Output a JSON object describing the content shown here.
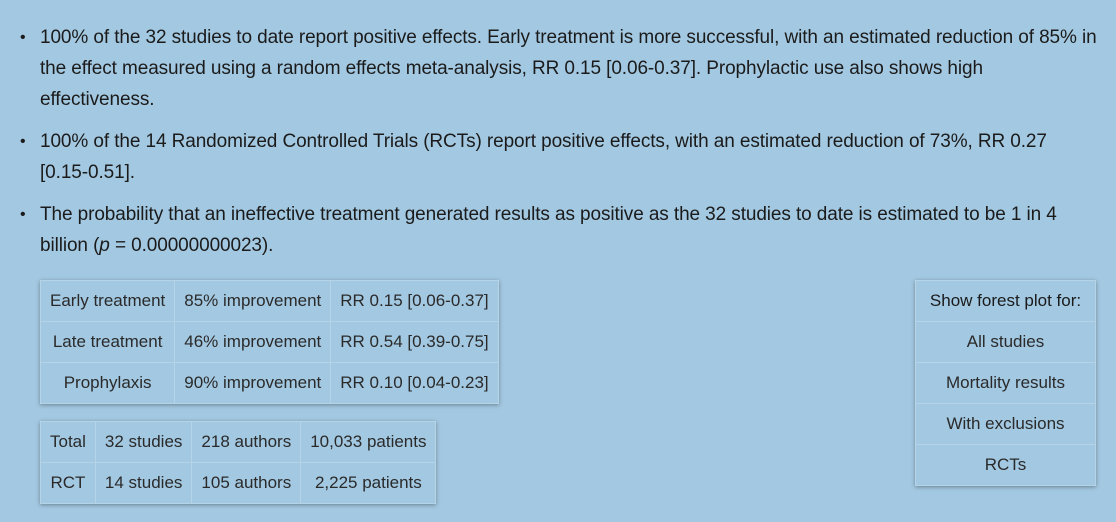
{
  "summary": {
    "bullet1": "100% of the 32 studies to date report positive effects. Early treatment is more successful, with an estimated reduction of 85% in the effect measured using a random effects meta-analysis, RR 0.15 [0.06-0.37]. Prophylactic use also shows high effectiveness.",
    "bullet2": "100% of the 14 Randomized Controlled Trials (RCTs) report positive effects, with an estimated reduction of 73%, RR 0.27 [0.15-0.51].",
    "bullet3_before": "The probability that an ineffective treatment generated results as positive as the 32 studies to date is estimated to be 1 in 4 billion (",
    "bullet3_p": "p",
    "bullet3_after": " = 0.00000000023).",
    "bullet_symbol": "•"
  },
  "results_table": [
    {
      "stage": "Early treatment",
      "improvement": "85% improvement",
      "rr": "RR 0.15 [0.06-0.37]"
    },
    {
      "stage": "Late treatment",
      "improvement": "46% improvement",
      "rr": "RR 0.54 [0.39-0.75]"
    },
    {
      "stage": "Prophylaxis",
      "improvement": "90% improvement",
      "rr": "RR 0.10 [0.04-0.23]"
    }
  ],
  "totals_table": [
    {
      "label": "Total",
      "studies": "32 studies",
      "authors": "218 authors",
      "patients": "10,033 patients"
    },
    {
      "label": "RCT",
      "studies": "14 studies",
      "authors": "105 authors",
      "patients": "2,225 patients"
    }
  ],
  "forest": {
    "heading": "Show forest plot for:",
    "options": [
      "All studies",
      "Mortality results",
      "With exclusions",
      "RCTs"
    ]
  },
  "colors": {
    "background": "#a3c8e1",
    "text": "#1b1b1b"
  }
}
